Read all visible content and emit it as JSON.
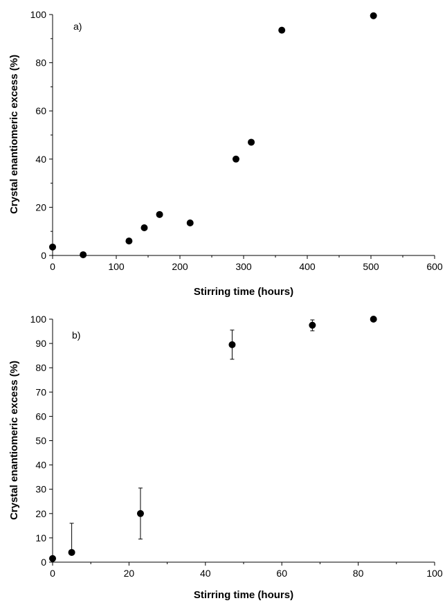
{
  "chart_data": [
    {
      "type": "scatter",
      "panel_label": "a)",
      "xlabel": "Stirring time (hours)",
      "ylabel": "Crystal enantiomeric excess (%)",
      "xlim": [
        0,
        600
      ],
      "ylim": [
        0,
        100
      ],
      "xticks": [
        0,
        100,
        200,
        300,
        400,
        500,
        600
      ],
      "yticks": [
        0,
        20,
        40,
        60,
        80,
        100
      ],
      "grid": false,
      "marker_color": "#000000",
      "series": [
        {
          "x": [
            0,
            48,
            120,
            144,
            168,
            216,
            288,
            312,
            360,
            504
          ],
          "y": [
            3.5,
            0.3,
            6,
            11.5,
            17,
            13.5,
            40,
            47,
            93.5,
            99.5
          ]
        }
      ]
    },
    {
      "type": "scatter",
      "panel_label": "b)",
      "xlabel": "Stirring time (hours)",
      "ylabel": "Crystal enantiomeric excess (%)",
      "xlim": [
        0,
        100
      ],
      "ylim": [
        0,
        100
      ],
      "xticks": [
        0,
        20,
        40,
        60,
        80,
        100
      ],
      "yticks": [
        0,
        10,
        20,
        30,
        40,
        50,
        60,
        70,
        80,
        90,
        100
      ],
      "grid": false,
      "marker_color": "#000000",
      "series": [
        {
          "x": [
            0,
            5,
            23,
            47,
            68,
            84
          ],
          "y": [
            1.5,
            4,
            20,
            89.5,
            97.5,
            100
          ],
          "error_low": [
            1.5,
            4,
            9.5,
            83.5,
            95.2,
            100
          ],
          "error_high": [
            1.5,
            16,
            30.5,
            95.5,
            99.7,
            100
          ]
        }
      ]
    }
  ]
}
